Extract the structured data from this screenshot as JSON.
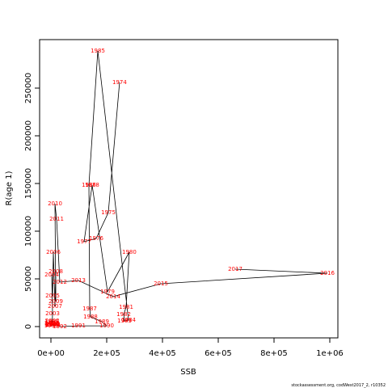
{
  "chart_data": {
    "type": "line",
    "xlabel": "SSB",
    "ylabel": "R(age 1)",
    "footer": "stockassessment.org, codWest2017_2, r10352",
    "color": "#000000",
    "label_color": "#ff0000",
    "point_labels": [
      "1974",
      "1975",
      "1976",
      "1977",
      "1978",
      "1979",
      "1980",
      "1981",
      "1982",
      "1983",
      "1984",
      "1985",
      "1986",
      "1987",
      "1988",
      "1989",
      "1990",
      "1991",
      "1992",
      "1993",
      "1994",
      "1995",
      "1996",
      "1997",
      "1998",
      "1999",
      "2000",
      "2001",
      "2002",
      "2003",
      "2004",
      "2005",
      "2006",
      "2007",
      "2008",
      "2009",
      "2010",
      "2011",
      "2012",
      "2013",
      "2014",
      "2015",
      "2016",
      "2017"
    ],
    "x": [
      246000,
      205800,
      162300,
      118800,
      147800,
      202900,
      281000,
      269600,
      260900,
      263800,
      278300,
      168100,
      136200,
      139100,
      142000,
      182600,
      200000,
      98600,
      31900,
      8000,
      5000,
      3000,
      6000,
      2000,
      4000,
      1500,
      7000,
      3000,
      5000,
      5800,
      2900,
      5800,
      8700,
      14500,
      17400,
      17400,
      14500,
      20300,
      31900,
      98600,
      223200,
      394200,
      991300,
      660900
    ],
    "values": [
      256000,
      119500,
      92400,
      89000,
      148300,
      36400,
      78000,
      20300,
      12700,
      5900,
      6800,
      289000,
      148300,
      18600,
      10200,
      5100,
      800,
      800,
      0,
      2000,
      1500,
      5000,
      3000,
      2500,
      4000,
      1000,
      1500,
      3500,
      6000,
      13600,
      54200,
      32200,
      78000,
      21200,
      57600,
      26300,
      128800,
      112700,
      46600,
      48300,
      31400,
      44900,
      55900,
      60200
    ],
    "xlim": [
      -40580,
      1028986
    ],
    "ylim": [
      -11864,
      300847
    ],
    "xticks": [
      {
        "value": 0,
        "label": "0e+00"
      },
      {
        "value": 200000,
        "label": "2e+05"
      },
      {
        "value": 400000,
        "label": "4e+05"
      },
      {
        "value": 600000,
        "label": "6e+05"
      },
      {
        "value": 800000,
        "label": "8e+05"
      },
      {
        "value": 1000000,
        "label": "1e+06"
      }
    ],
    "yticks": [
      0,
      50000,
      100000,
      150000,
      200000,
      250000
    ]
  }
}
